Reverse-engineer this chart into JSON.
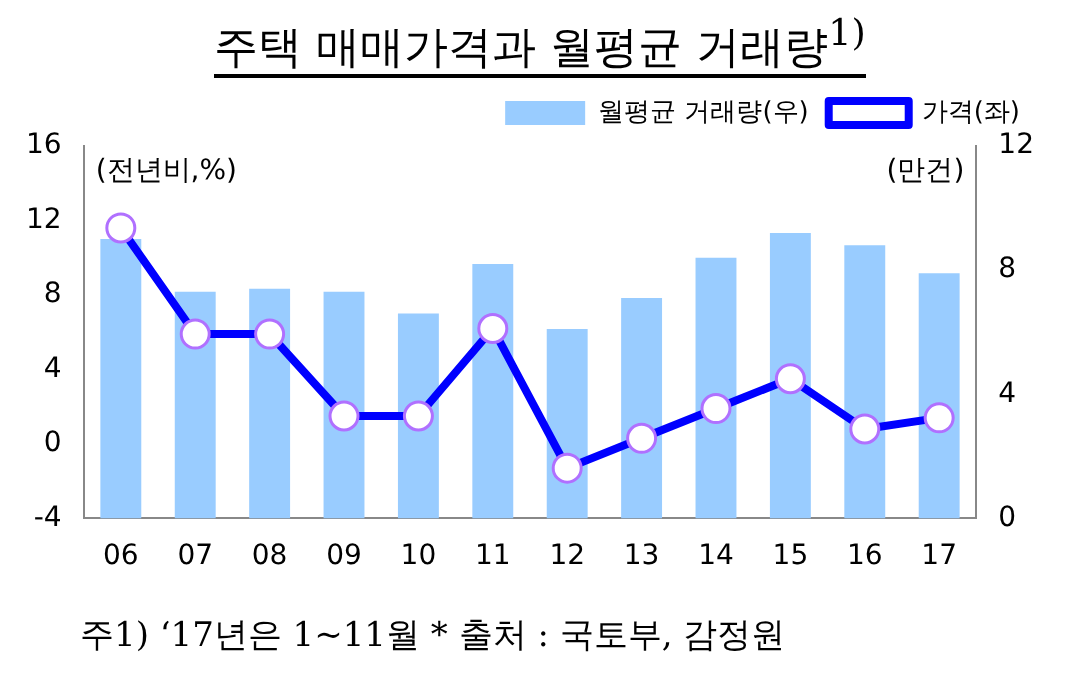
{
  "chart_data": {
    "type": "bar",
    "title": "주택 매매가격과 월평균 거래량$^{1)}$",
    "categories": [
      "06",
      "07",
      "08",
      "09",
      "10",
      "11",
      "12",
      "13",
      "14",
      "15",
      "16",
      "17"
    ],
    "series": [
      {
        "name": "월평균 거래량(우)",
        "axis": "y2",
        "color": "#99ccff",
        "values": [
          9.0,
          7.3,
          7.4,
          7.3,
          6.6,
          8.2,
          6.1,
          7.1,
          8.4,
          9.2,
          8.8,
          7.9
        ]
      },
      {
        "name": "가격(좌)",
        "type": "line",
        "axis": "y",
        "color": "#0000ff",
        "marker": "circle",
        "values": [
          11.6,
          5.9,
          5.9,
          1.5,
          1.5,
          6.2,
          -1.3,
          0.3,
          1.9,
          3.5,
          0.8,
          1.4
        ]
      }
    ],
    "ylim": [
      -4,
      16
    ],
    "yticks": [
      -4,
      0,
      4,
      8,
      12,
      16
    ],
    "y2lim": [
      0,
      12
    ],
    "y2ticks": [
      0,
      4,
      8,
      12
    ],
    "grid": false,
    "legend": "top",
    "annotations": [
      "(전년비,%)",
      "(만건)",
      "주1) ‘17년은 1~11월 * 출처 : 국토부, 감정원"
    ]
  }
}
